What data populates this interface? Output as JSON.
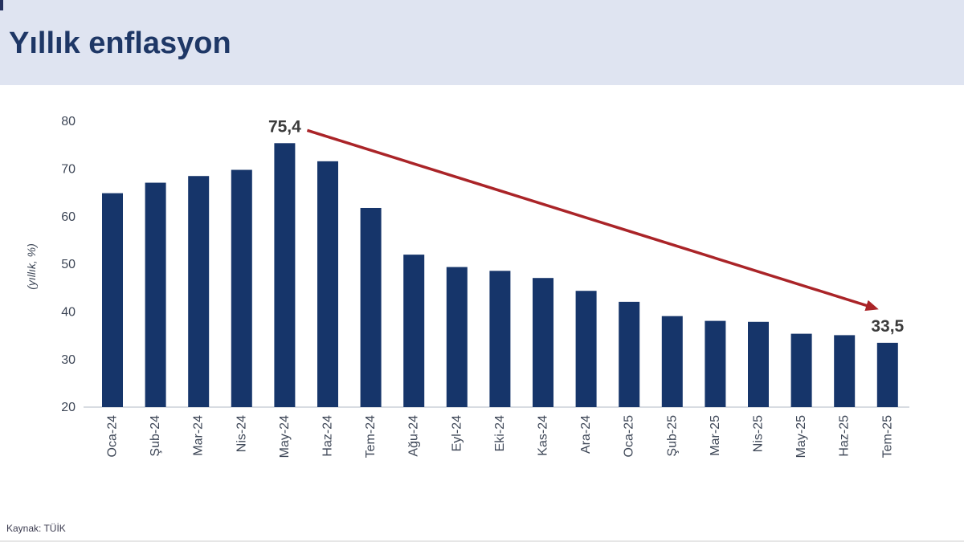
{
  "header": {
    "title": "Yıllık enflasyon"
  },
  "footer": {
    "source": "Kaynak: TÜİK"
  },
  "colors": {
    "header_bg": "#dfe4f1",
    "title_text": "#1e3766",
    "bar": "#16356a",
    "axis_text": "#3e4757",
    "annotation_text": "#3b3b3b",
    "arrow": "#aa2428",
    "baseline": "#ccd0d8"
  },
  "chart_data": {
    "type": "bar",
    "title": "Yıllık enflasyon",
    "xlabel": "",
    "ylabel": "(yıllık, %)",
    "categories": [
      "Oca-24",
      "Şub-24",
      "Mar-24",
      "Nis-24",
      "May-24",
      "Haz-24",
      "Tem-24",
      "Ağu-24",
      "Eyl-24",
      "Eki-24",
      "Kas-24",
      "Ara-24",
      "Oca-25",
      "Şub-25",
      "Mar-25",
      "Nis-25",
      "May-25",
      "Haz-25",
      "Tem-25"
    ],
    "values": [
      64.9,
      67.1,
      68.5,
      69.8,
      75.4,
      71.6,
      61.8,
      52.0,
      49.4,
      48.6,
      47.1,
      44.4,
      42.1,
      39.1,
      38.1,
      37.9,
      35.4,
      35.1,
      33.5
    ],
    "ylim": [
      20,
      80
    ],
    "yticks": [
      20,
      30,
      40,
      50,
      60,
      70,
      80
    ],
    "grid": false,
    "legend": false,
    "annotations": [
      {
        "text": "75,4",
        "category": "May-24",
        "value": 75.4
      },
      {
        "text": "33,5",
        "category": "Tem-25",
        "value": 33.5
      }
    ],
    "trend_arrow": {
      "from_category": "May-24",
      "to_category": "Tem-25"
    },
    "source": "Kaynak: TÜİK"
  }
}
